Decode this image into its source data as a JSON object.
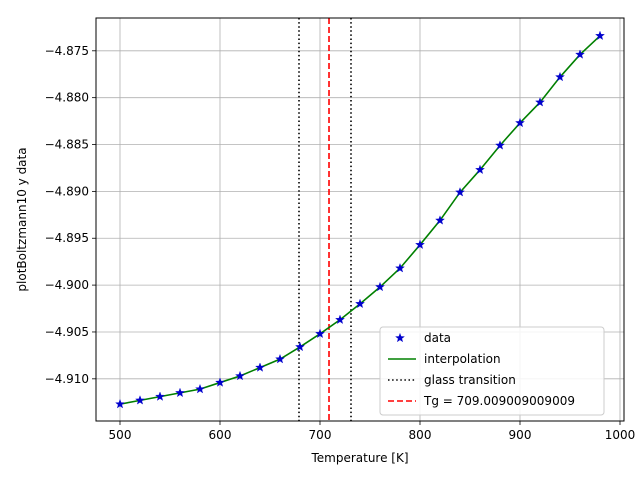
{
  "chart_data": {
    "type": "scatter",
    "title": "",
    "xlabel": "Temperature [K]",
    "ylabel": "plotBoltzmann10 y data",
    "xlim": [
      476,
      1004
    ],
    "ylim": [
      -4.9145,
      -4.8715
    ],
    "x_ticks": [
      500,
      600,
      700,
      800,
      900,
      1000
    ],
    "x_tick_labels": [
      "500",
      "600",
      "700",
      "800",
      "900",
      "1000"
    ],
    "y_ticks": [
      -4.91,
      -4.905,
      -4.9,
      -4.895,
      -4.89,
      -4.885,
      -4.88,
      -4.875
    ],
    "y_tick_labels": [
      "−4.910",
      "−4.905",
      "−4.900",
      "−4.895",
      "−4.890",
      "−4.885",
      "−4.880",
      "−4.875"
    ],
    "grid": true,
    "legend_position": "lower-right",
    "series": [
      {
        "name": "data",
        "kind": "markers",
        "marker": "star",
        "color": "#0000cc",
        "x": [
          500,
          520,
          540,
          560,
          580,
          600,
          620,
          640,
          660,
          680,
          700,
          720,
          740,
          760,
          780,
          800,
          820,
          840,
          860,
          880,
          900,
          920,
          940,
          960,
          980
        ],
        "y": [
          -4.9127,
          -4.9123,
          -4.9119,
          -4.9115,
          -4.9111,
          -4.9104,
          -4.9097,
          -4.9088,
          -4.9079,
          -4.9066,
          -4.9052,
          -4.9037,
          -4.902,
          -4.9002,
          -4.8982,
          -4.8957,
          -4.8931,
          -4.8901,
          -4.8877,
          -4.8851,
          -4.8827,
          -4.8805,
          -4.8778,
          -4.8754,
          -4.8734
        ]
      },
      {
        "name": "interpolation",
        "kind": "line",
        "color": "#008000",
        "x": [
          500,
          520,
          540,
          560,
          580,
          600,
          620,
          640,
          660,
          680,
          700,
          720,
          740,
          760,
          780,
          800,
          820,
          840,
          860,
          880,
          900,
          920,
          940,
          960,
          980
        ],
        "y": [
          -4.9127,
          -4.9123,
          -4.9119,
          -4.9115,
          -4.9111,
          -4.9104,
          -4.9097,
          -4.9088,
          -4.9079,
          -4.9066,
          -4.9052,
          -4.9037,
          -4.902,
          -4.9002,
          -4.8982,
          -4.8957,
          -4.8931,
          -4.8901,
          -4.8877,
          -4.8851,
          -4.8827,
          -4.8805,
          -4.8778,
          -4.8754,
          -4.8734
        ]
      },
      {
        "name": "glass transition",
        "kind": "vlines",
        "style": "dotted",
        "color": "#000000",
        "x": [
          679,
          731
        ]
      },
      {
        "name": "Tg = 709.009009009009",
        "kind": "vlines",
        "style": "dashed",
        "color": "#ff0000",
        "x": [
          709.009009009009
        ]
      }
    ]
  }
}
